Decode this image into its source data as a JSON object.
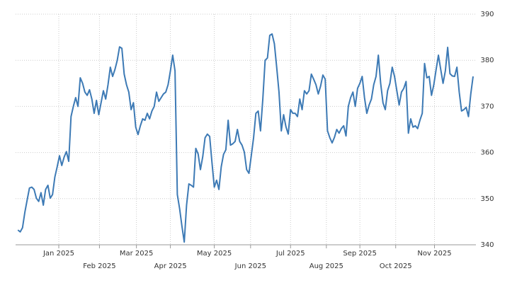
{
  "chart_data": {
    "type": "line",
    "grid": true,
    "color": "#3d7ab5",
    "values": [
      343.2,
      342.8,
      343.7,
      347,
      349.7,
      352.3,
      352.5,
      352,
      350.1,
      349.4,
      351.3,
      348.6,
      352,
      352.9,
      350.1,
      350.9,
      354.7,
      356.9,
      359.3,
      357.2,
      359,
      360.2,
      358.1,
      367.8,
      370,
      371.9,
      370,
      376.2,
      375,
      373.1,
      372.4,
      373.6,
      371.6,
      368.5,
      371.3,
      368.2,
      370.8,
      373.4,
      371.6,
      374.7,
      378.5,
      376.5,
      378,
      380,
      382.9,
      382.6,
      377,
      374.7,
      373.1,
      369.3,
      370.8,
      365.5,
      363.9,
      365.8,
      367.3,
      367,
      368.5,
      367.3,
      369,
      370,
      373.1,
      371.1,
      371.9,
      372.7,
      373.1,
      374.7,
      377.7,
      381.1,
      377.7,
      350.9,
      347.8,
      344,
      340.6,
      348.6,
      353.2,
      352.9,
      352.5,
      360.9,
      359.7,
      356.3,
      359.1,
      363.2,
      364,
      363.5,
      357.8,
      352.5,
      354,
      352,
      356.9,
      359.6,
      360.6,
      367,
      361.6,
      361.9,
      362.4,
      365,
      362.4,
      361.6,
      360.1,
      356.3,
      355.5,
      359.3,
      363.2,
      368.5,
      369,
      364.7,
      371.6,
      380,
      380.5,
      385.4,
      385.7,
      383.6,
      378.5,
      373.1,
      364.7,
      368.2,
      365.6,
      364,
      369.3,
      368.5,
      368.5,
      367.8,
      371.6,
      369.3,
      373.4,
      372.7,
      373.4,
      377,
      375.9,
      374.7,
      372.7,
      374.4,
      376.8,
      375.9,
      364.7,
      363.2,
      362.1,
      363.3,
      365,
      364.2,
      365.2,
      365.8,
      363.6,
      370,
      371.9,
      373.1,
      370,
      373.9,
      375,
      376.5,
      371.9,
      368.5,
      370.3,
      371.6,
      374.7,
      376.5,
      381.1,
      375,
      370.8,
      369.3,
      373.4,
      375,
      378.5,
      376.5,
      373.4,
      370.3,
      373.1,
      373.9,
      375.4,
      364.2,
      367.3,
      365.5,
      365.8,
      365.2,
      367,
      368.5,
      379.3,
      376.2,
      376.5,
      372.4,
      374.7,
      378,
      381.1,
      378,
      375,
      377.7,
      382.8,
      377.1,
      376.6,
      376.5,
      378.5,
      373.1,
      369,
      369.3,
      369.8,
      367.8,
      372.7,
      376.5
    ],
    "xlim": [
      -1,
      197
    ],
    "xticks": [
      {
        "value": 17.7,
        "label": "Jan 2025"
      },
      {
        "value": 35.3,
        "label": "Feb 2025"
      },
      {
        "value": 51.3,
        "label": "Mar 2025"
      },
      {
        "value": 66,
        "label": "Apr 2025"
      },
      {
        "value": 85,
        "label": "May 2025"
      },
      {
        "value": 100.7,
        "label": "Jun 2025"
      },
      {
        "value": 118,
        "label": "Jul 2025"
      },
      {
        "value": 133.5,
        "label": "Aug 2025"
      },
      {
        "value": 148,
        "label": "Sep 2025"
      },
      {
        "value": 163.5,
        "label": "Oct 2025"
      },
      {
        "value": 180.3,
        "label": "Nov 2025"
      }
    ],
    "ylim": [
      340,
      390
    ],
    "yticks": [
      340,
      350,
      360,
      370,
      380,
      390
    ]
  }
}
